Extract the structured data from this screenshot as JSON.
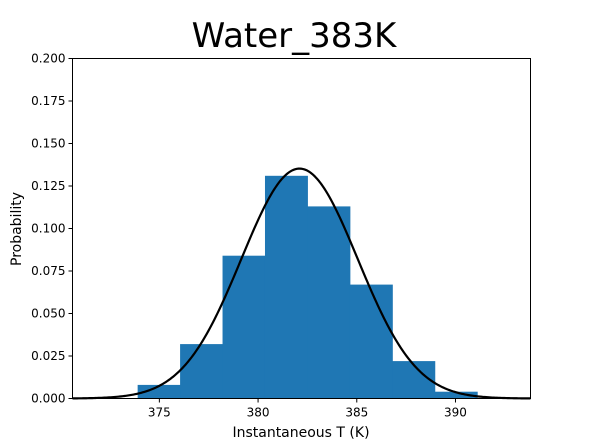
{
  "chart_data": {
    "type": "bar",
    "title": "Water_383K",
    "xlabel": "Instantaneous T (K)",
    "ylabel": "Probability",
    "xlim": [
      370.6,
      393.8
    ],
    "ylim": [
      0,
      0.2
    ],
    "x_ticks": [
      "375",
      "380",
      "385",
      "390"
    ],
    "y_ticks": [
      "0.000",
      "0.025",
      "0.050",
      "0.075",
      "0.100",
      "0.125",
      "0.150",
      "0.175",
      "0.200"
    ],
    "grid": false,
    "legend": false,
    "colors": {
      "bars": "#1f77b4",
      "curve": "#000000"
    },
    "bins": [
      {
        "x0": 373.9,
        "x1": 376.05,
        "value": 0.008
      },
      {
        "x0": 376.05,
        "x1": 378.2,
        "value": 0.032
      },
      {
        "x0": 378.2,
        "x1": 380.35,
        "value": 0.084
      },
      {
        "x0": 380.35,
        "x1": 382.5,
        "value": 0.131
      },
      {
        "x0": 382.5,
        "x1": 384.65,
        "value": 0.113
      },
      {
        "x0": 384.65,
        "x1": 386.8,
        "value": 0.067
      },
      {
        "x0": 386.8,
        "x1": 388.95,
        "value": 0.022
      },
      {
        "x0": 388.95,
        "x1": 391.1,
        "value": 0.004
      }
    ],
    "fit_curve": {
      "type": "normal",
      "mean": 382.1,
      "std": 2.95
    }
  }
}
